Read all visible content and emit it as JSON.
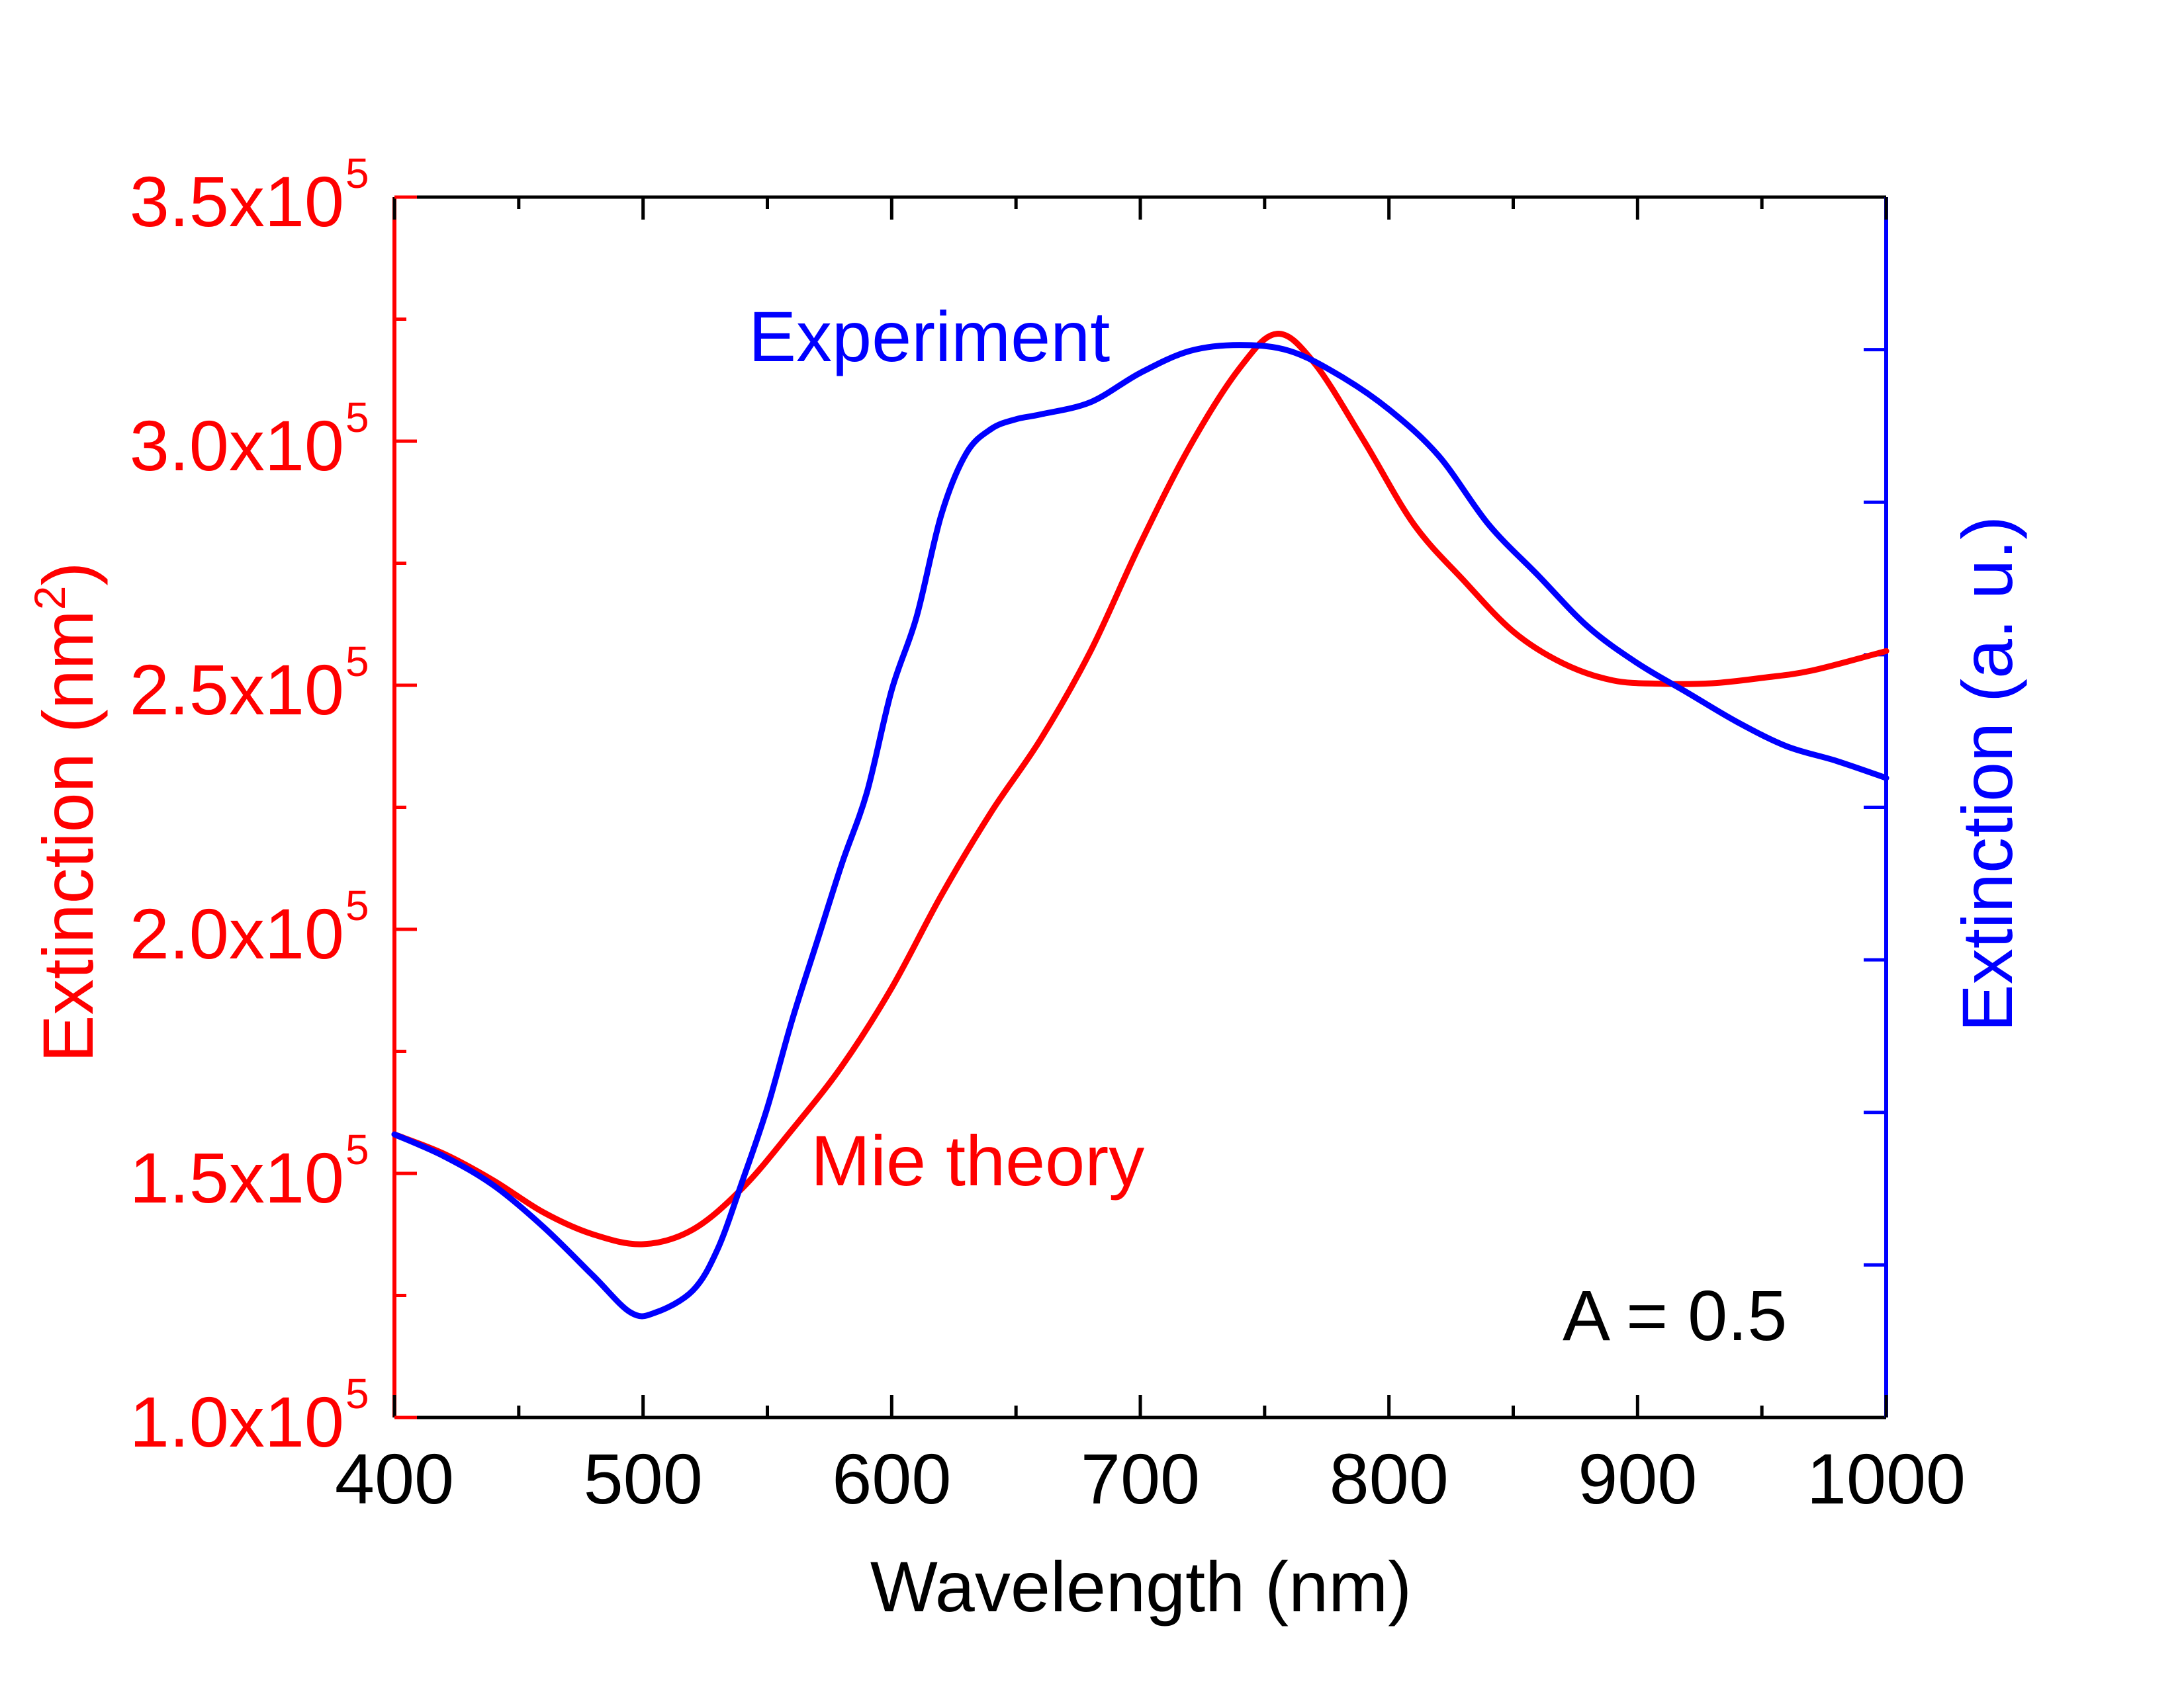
{
  "chart_data": {
    "type": "line",
    "xlabel": "Wavelength (nm)",
    "ylabel_left": {
      "base": "Extinction (nm",
      "sup": "2",
      "close": ")"
    },
    "ylabel_right": "Extinction (a. u.)",
    "xlim": [
      400,
      1000
    ],
    "ylim_left": [
      100000,
      350000
    ],
    "right_axis_range": [
      0,
      8
    ],
    "x_ticks": [
      {
        "value": 400,
        "label": "400"
      },
      {
        "value": 500,
        "label": "500"
      },
      {
        "value": 600,
        "label": "600"
      },
      {
        "value": 700,
        "label": "700"
      },
      {
        "value": 800,
        "label": "800"
      },
      {
        "value": 900,
        "label": "900"
      },
      {
        "value": 1000,
        "label": "1000"
      }
    ],
    "x_minor_ticks": [
      450,
      550,
      650,
      750,
      850,
      950
    ],
    "y_ticks_left": [
      {
        "value": 100000,
        "mantissa": "1.0x10",
        "exp": "5"
      },
      {
        "value": 150000,
        "mantissa": "1.5x10",
        "exp": "5"
      },
      {
        "value": 200000,
        "mantissa": "2.0x10",
        "exp": "5"
      },
      {
        "value": 250000,
        "mantissa": "2.5x10",
        "exp": "5"
      },
      {
        "value": 300000,
        "mantissa": "3.0x10",
        "exp": "5"
      },
      {
        "value": 350000,
        "mantissa": "3.5x10",
        "exp": "5"
      }
    ],
    "y_minor_ticks_left": [
      125000,
      175000,
      225000,
      275000,
      325000
    ],
    "y_ticks_right": [
      1,
      2,
      3,
      4,
      5,
      6,
      7
    ],
    "colors": {
      "mie": "#ff0000",
      "experiment": "#0000ff",
      "text": "#000000"
    },
    "annotation": "A = 0.5",
    "series": [
      {
        "name": "Mie theory",
        "label": "Mie theory",
        "color": "#ff0000",
        "axis": "left",
        "x": [
          400,
          420,
          440,
          460,
          480,
          500,
          520,
          540,
          560,
          580,
          600,
          620,
          640,
          660,
          680,
          700,
          720,
          740,
          755,
          770,
          790,
          810,
          830,
          850,
          870,
          890,
          910,
          930,
          950,
          970,
          1000
        ],
        "y": [
          158000,
          154000,
          148500,
          142000,
          137500,
          135500,
          138500,
          147000,
          159000,
          172000,
          188000,
          207000,
          224000,
          239000,
          257000,
          279000,
          299000,
          315000,
          322000,
          316000,
          300000,
          283000,
          271500,
          261000,
          254500,
          251000,
          250300,
          250400,
          251500,
          253000,
          257000
        ]
      },
      {
        "name": "Experiment",
        "label": "Experiment",
        "color": "#0000ff",
        "axis": "left",
        "x": [
          400,
          420,
          440,
          460,
          480,
          495,
          505,
          520,
          530,
          540,
          550,
          560,
          570,
          580,
          590,
          600,
          610,
          620,
          630,
          640,
          650,
          660,
          680,
          700,
          720,
          740,
          760,
          780,
          800,
          820,
          840,
          860,
          880,
          900,
          920,
          940,
          960,
          980,
          1000
        ],
        "y": [
          158000,
          153500,
          147500,
          139000,
          129000,
          121500,
          121500,
          126000,
          134500,
          148500,
          163500,
          181500,
          197500,
          213500,
          228000,
          249000,
          264000,
          285000,
          297500,
          302500,
          304500,
          305500,
          308000,
          314000,
          318500,
          319700,
          318500,
          313500,
          306500,
          297000,
          283000,
          272500,
          262000,
          254500,
          248500,
          242500,
          237500,
          234500,
          231000
        ]
      }
    ]
  }
}
